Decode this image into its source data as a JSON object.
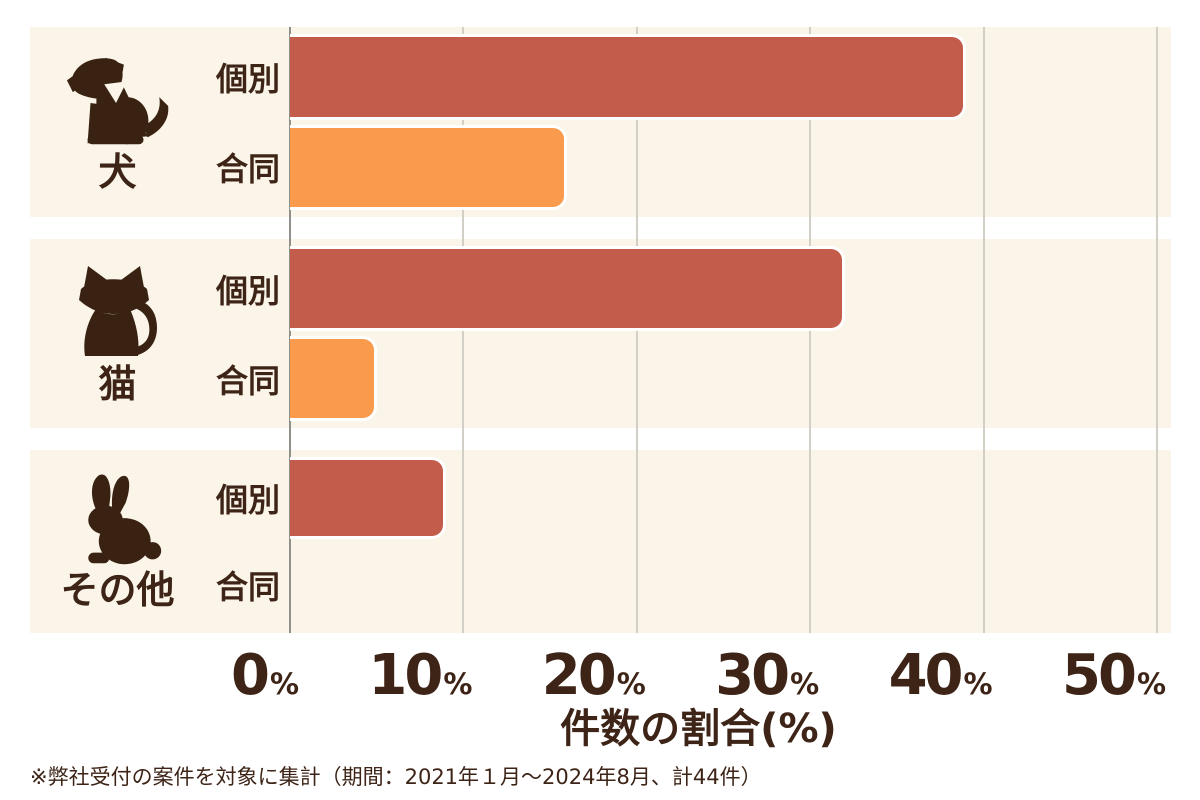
{
  "chart_data": {
    "type": "bar",
    "orientation": "horizontal",
    "categories": [
      "犬",
      "猫",
      "その他"
    ],
    "category_icons": [
      "dog-icon",
      "cat-icon",
      "rabbit-icon"
    ],
    "series": [
      {
        "name": "個別",
        "color": "#C35C4B",
        "values": [
          39,
          32,
          9
        ]
      },
      {
        "name": "合同",
        "color": "#F99A4D",
        "values": [
          16,
          5,
          0
        ]
      }
    ],
    "xlabel": "件数の割合(%)",
    "xlim": [
      0,
      50
    ],
    "xticks": [
      "0",
      "10",
      "20",
      "30",
      "40",
      "50"
    ],
    "percent_suffix": "%",
    "grid": "vertical gridlines every 10%, zero axis line darker",
    "legend": "none",
    "note": "※弊社受付の案件を対象に集計（期間：2021年１月～2024年8月、計44件）"
  },
  "colors": {
    "page_bg": "#FFFFFF",
    "panel_bg": "#FAF5E8",
    "bar_individual": "#C35C4B",
    "bar_joint": "#F99A4D",
    "text": "#3D2417",
    "icon": "#3A2212",
    "axis_line": "#90908A",
    "gridline": "#D2CFC6",
    "bar_outline": "#FFFFFF"
  }
}
